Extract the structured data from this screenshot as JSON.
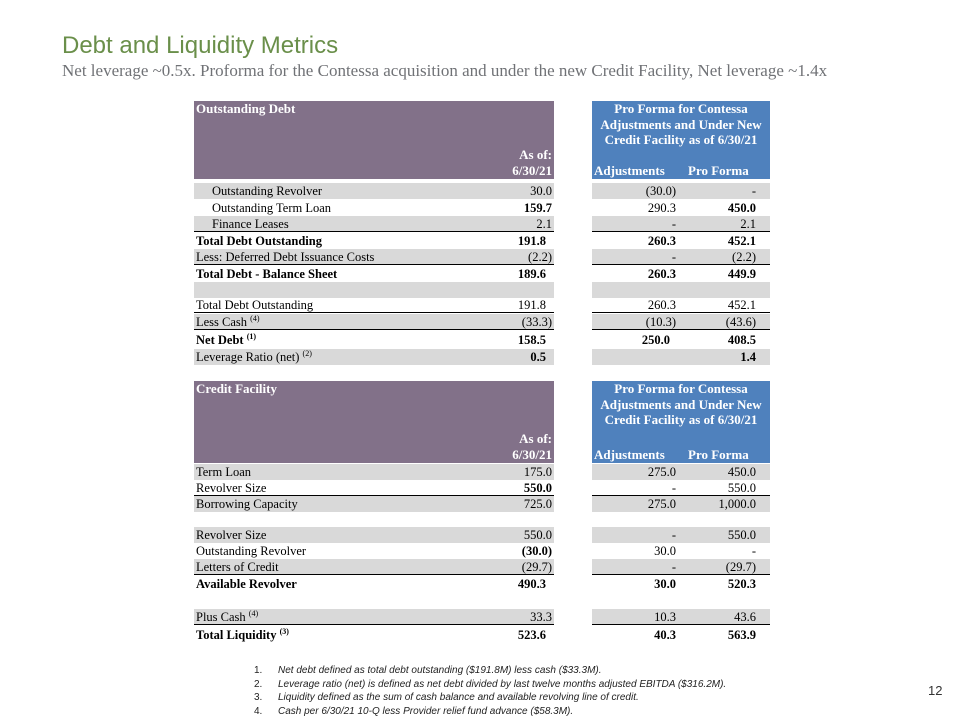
{
  "title": "Debt and Liquidity Metrics",
  "subtitle": "Net leverage ~0.5x. Proforma for the Contessa acquisition and under the new Credit Facility, Net leverage ~1.4x",
  "debt_table": {
    "header_title": "Outstanding Debt",
    "as_of_label": "As of:",
    "as_of_date": "6/30/21",
    "pro_forma_header": "Pro Forma for Contessa Adjustments and Under New Credit Facility as of 6/30/21",
    "col_adjustments": "Adjustments",
    "col_pro_forma": "Pro Forma",
    "rows": [
      {
        "label": "Outstanding Revolver",
        "v1": "30.0",
        "v2": "(30.0)",
        "v3": "-"
      },
      {
        "label": "Outstanding Term Loan",
        "v1": "159.7",
        "v2": "290.3",
        "v3": "450.0"
      },
      {
        "label": "Finance Leases",
        "v1": "2.1",
        "v2": "-",
        "v3": "2.1"
      },
      {
        "label": "Total Debt Outstanding",
        "v1": "191.8",
        "v2": "260.3",
        "v3": "452.1"
      },
      {
        "label": "Less: Deferred Debt Issuance Costs",
        "v1": "(2.2)",
        "v2": "-",
        "v3": "(2.2)"
      },
      {
        "label": "Total Debt - Balance Sheet",
        "v1": "189.6",
        "v2": "260.3",
        "v3": "449.9"
      },
      {
        "label": "Total Debt Outstanding",
        "v1": "191.8",
        "v2": "260.3",
        "v3": "452.1"
      },
      {
        "label": "Less Cash",
        "sup": "(4)",
        "v1": "(33.3)",
        "v2": "(10.3)",
        "v3": "(43.6)"
      },
      {
        "label": "Net Debt",
        "sup": "(1)",
        "v1": "158.5",
        "v2": "250.0",
        "v3": "408.5"
      },
      {
        "label": "Leverage Ratio (net)",
        "sup": "(2)",
        "v1": "0.5",
        "v2": "",
        "v3": "1.4"
      }
    ]
  },
  "credit_table": {
    "header_title": "Credit Facility",
    "as_of_label": "As of:",
    "as_of_date": "6/30/21",
    "pro_forma_header": "Pro Forma for Contessa Adjustments and Under New Credit Facility as of 6/30/21",
    "col_adjustments": "Adjustments",
    "col_pro_forma": "Pro Forma",
    "rows": [
      {
        "label": "Term Loan",
        "v1": "175.0",
        "v2": "275.0",
        "v3": "450.0"
      },
      {
        "label": "Revolver Size",
        "v1": "550.0",
        "v2": "-",
        "v3": "550.0"
      },
      {
        "label": "Borrowing Capacity",
        "v1": "725.0",
        "v2": "275.0",
        "v3": "1,000.0"
      },
      {
        "label": "Revolver Size",
        "v1": "550.0",
        "v2": "-",
        "v3": "550.0"
      },
      {
        "label": "Outstanding Revolver",
        "v1": "(30.0)",
        "v2": "30.0",
        "v3": "-"
      },
      {
        "label": "Letters of Credit",
        "v1": "(29.7)",
        "v2": "-",
        "v3": "(29.7)"
      },
      {
        "label": "Available Revolver",
        "v1": "490.3",
        "v2": "30.0",
        "v3": "520.3"
      },
      {
        "label": "Plus Cash",
        "sup": "(4)",
        "v1": "33.3",
        "v2": "10.3",
        "v3": "43.6"
      },
      {
        "label": "Total Liquidity",
        "sup": "(3)",
        "v1": "523.6",
        "v2": "40.3",
        "v3": "563.9"
      }
    ]
  },
  "footnotes": [
    {
      "num": "1.",
      "text": "Net debt defined as total debt outstanding ($191.8M) less cash ($33.3M)."
    },
    {
      "num": "2.",
      "text": "Leverage ratio (net) is defined as net debt divided by last twelve months adjusted EBITDA ($316.2M)."
    },
    {
      "num": "3.",
      "text": "Liquidity defined as the sum of cash balance and available revolving line of credit."
    },
    {
      "num": "4.",
      "text": "Cash per 6/30/21 10-Q less Provider relief fund advance ($58.3M)."
    }
  ],
  "page_number": "12"
}
